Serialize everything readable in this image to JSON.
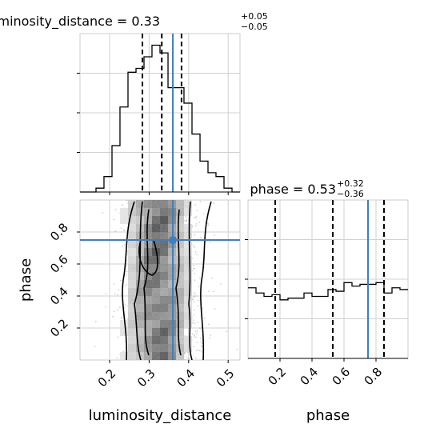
{
  "chart_data": {
    "type": "corner",
    "truth_color": "#3f7fbf",
    "panels": [
      {
        "id": "hist-luminosity-distance",
        "type": "histogram",
        "title_param": "luminosity_distance",
        "title_eq": " = ",
        "title_value": "0.33",
        "title_plus": "+0.05",
        "title_minus": "−0.05",
        "xlim": [
          0.125,
          0.53
        ],
        "bin_edges": [
          0.125,
          0.1452,
          0.1655,
          0.1857,
          0.206,
          0.2262,
          0.2465,
          0.2668,
          0.287,
          0.3072,
          0.3275,
          0.3478,
          0.368,
          0.3882,
          0.4085,
          0.4288,
          0.449,
          0.4692,
          0.4895,
          0.5098,
          0.53
        ],
        "counts": [
          0,
          0,
          1,
          4,
          12,
          22,
          31,
          32,
          35,
          38,
          36,
          27,
          27,
          23,
          15,
          8,
          5,
          4,
          1,
          0
        ],
        "ymax": 41,
        "quantiles": [
          0.283,
          0.332,
          0.382
        ],
        "truth": 0.36
      },
      {
        "id": "scatter-luminosity-distance-phase",
        "type": "scatter-density",
        "xlabel": "luminosity_distance",
        "ylabel": "phase",
        "xlim": [
          0.125,
          0.53
        ],
        "ylim": [
          0.0,
          1.0
        ],
        "xticks": [
          "0.2",
          "0.3",
          "0.4",
          "0.5"
        ],
        "xtick_values": [
          0.2,
          0.3,
          0.4,
          0.5
        ],
        "yticks": [
          "0.2",
          "0.4",
          "0.6",
          "0.8"
        ],
        "ytick_values": [
          0.2,
          0.4,
          0.6,
          0.8
        ],
        "truth_x": 0.36,
        "truth_y": 0.75
      },
      {
        "id": "hist-phase",
        "type": "histogram",
        "title_param": "phase",
        "title_eq": " = ",
        "title_value": "0.53",
        "title_plus": "+0.32",
        "title_minus": "−0.36",
        "xlim": [
          0.0,
          1.0
        ],
        "bin_edges": [
          0.0,
          0.05,
          0.1,
          0.15,
          0.2,
          0.25,
          0.3,
          0.35,
          0.4,
          0.45,
          0.5,
          0.55,
          0.6,
          0.65,
          0.7,
          0.75,
          0.8,
          0.85,
          0.9,
          0.95,
          1.0
        ],
        "counts": [
          41,
          38,
          36,
          37,
          34,
          35,
          35,
          38,
          36,
          36,
          40,
          39,
          44,
          42,
          43,
          43,
          44,
          38,
          41,
          40
        ],
        "ymax": 92,
        "xticks": [
          "0.2",
          "0.4",
          "0.6",
          "0.8"
        ],
        "xtick_values": [
          0.2,
          0.4,
          0.6,
          0.8
        ],
        "xlabel": "phase",
        "quantiles": [
          0.17,
          0.53,
          0.85
        ],
        "truth": 0.75
      }
    ]
  }
}
